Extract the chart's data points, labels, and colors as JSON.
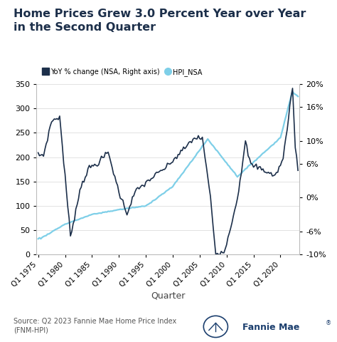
{
  "title_line1": "Home Prices Grew 3.0 Percent Year over Year",
  "title_line2": "in the Second Quarter",
  "title_color": "#1c2f4a",
  "title_fontsize": 11.5,
  "xlabel": "Quarter",
  "xlabel_fontsize": 9,
  "legend_labels": [
    "YoY % change (NSA, Right axis)",
    "HPI_NSA"
  ],
  "legend_colors": [
    "#1c2f4a",
    "#7ecfe8"
  ],
  "background_color": "#ffffff",
  "source_text": "Source: Q2 2023 Fannie Mae Home Price Index\n(FNM-HPI)",
  "left_ylim": [
    0,
    350
  ],
  "right_ylim": [
    -10,
    20
  ],
  "left_yticks": [
    0,
    50,
    100,
    150,
    200,
    250,
    300,
    350
  ],
  "right_yticks": [
    -10,
    -6,
    0,
    6,
    10,
    16,
    20
  ],
  "right_yticklabels": [
    "-10%",
    "-6%",
    "0%",
    "6%",
    "10%",
    "16%",
    "20%"
  ],
  "grid_color": "#e2e2e2",
  "hpi_color": "#7ecfe8",
  "yoy_color": "#1c2f4a",
  "hpi_linewidth": 1.6,
  "yoy_linewidth": 1.2,
  "fannie_color": "#1c3f6e"
}
